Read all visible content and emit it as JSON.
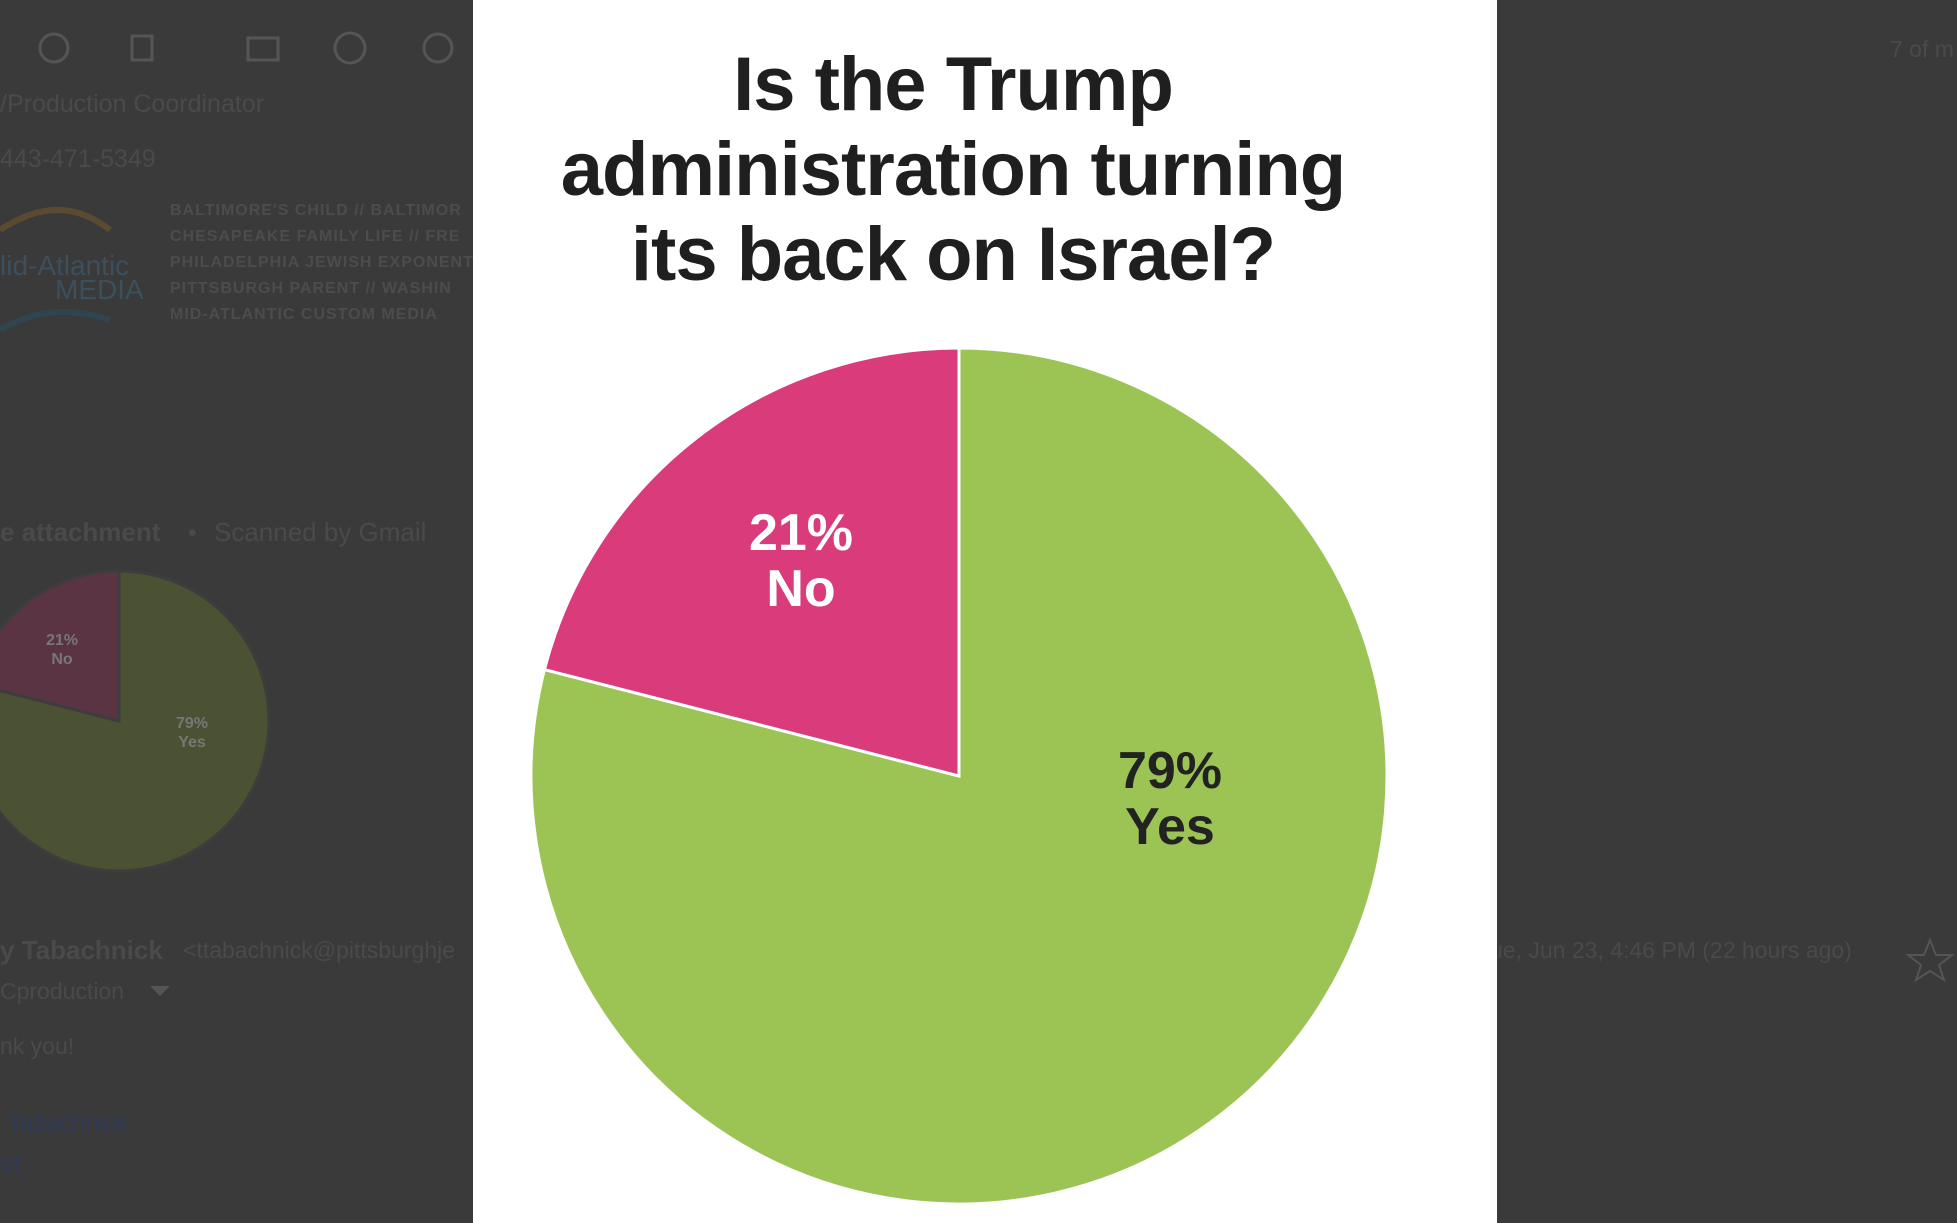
{
  "background": {
    "title_role": "/Production Coordinator",
    "phone": "443-471-5349",
    "logo": [
      "lid-Atlantic",
      "MEDIA"
    ],
    "publications": [
      "BALTIMORE'S CHILD  //  BALTIMOR",
      "CHESAPEAKE FAMILY LIFE  //  FRE",
      "PHILADELPHIA JEWISH EXPONENT",
      "PITTSBURGH PARENT  //  WASHIN",
      "MID-ATLANTIC CUSTOM MEDIA"
    ],
    "attachment": "e attachment",
    "separator": "•",
    "scanned": "Scanned by Gmail",
    "thumbnail_labels": [
      "21%",
      "No",
      "79%",
      "Yes"
    ],
    "sender_name": "y Tabachnick",
    "sender_email": "<ttabachnick@pittsburghje",
    "date": "ue, Jun 23, 4:46 PM (22 hours ago)",
    "recipient": "Cproduction",
    "body": "nk you!",
    "signature": [
      "Tabachnick",
      "or"
    ],
    "counter": "7 of m"
  },
  "chart_data": {
    "type": "pie",
    "title": "Is the Trump administration turning its back on Israel?",
    "categories": [
      "Yes",
      "No"
    ],
    "values": [
      79,
      21
    ],
    "value_labels": [
      "79%",
      "21%"
    ],
    "colors": [
      "#9bc455",
      "#d93b7b"
    ],
    "label_colors": [
      "#222222",
      "#ffffff"
    ]
  }
}
